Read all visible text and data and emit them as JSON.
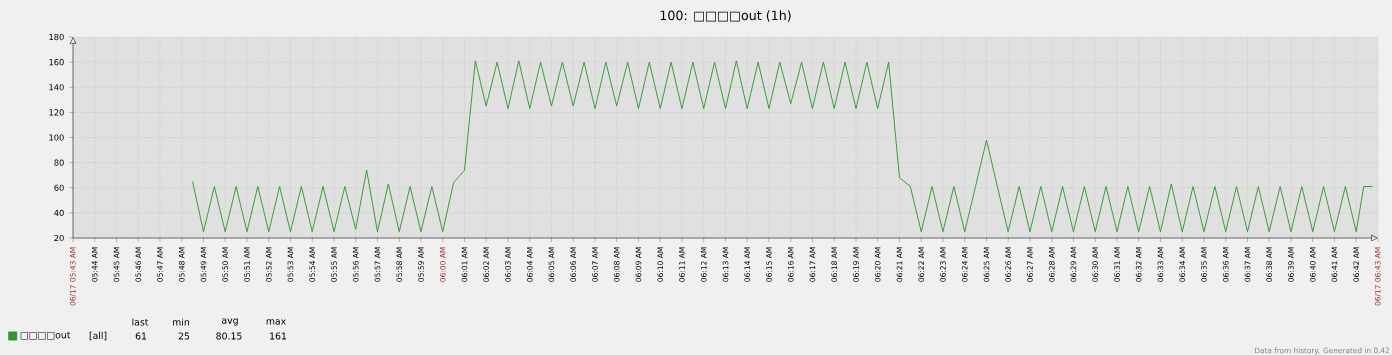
{
  "chart_data": {
    "type": "line",
    "title": "100: □□□□out (1h)",
    "xlim": [
      5.7167,
      6.7167
    ],
    "ylim": [
      20,
      180
    ],
    "yticks": [
      20,
      40,
      60,
      80,
      100,
      120,
      140,
      160,
      180
    ],
    "xticks": [
      {
        "value": 5.7167,
        "label": "06/17 05:43 AM"
      },
      {
        "value": 5.7333,
        "label": "05:44 AM"
      },
      {
        "value": 5.75,
        "label": "05:45 AM"
      },
      {
        "value": 5.7667,
        "label": "05:46 AM"
      },
      {
        "value": 5.7833,
        "label": "05:47 AM"
      },
      {
        "value": 5.8,
        "label": "05:48 AM"
      },
      {
        "value": 5.8167,
        "label": "05:49 AM"
      },
      {
        "value": 5.8333,
        "label": "05:50 AM"
      },
      {
        "value": 5.85,
        "label": "05:51 AM"
      },
      {
        "value": 5.8667,
        "label": "05:52 AM"
      },
      {
        "value": 5.8833,
        "label": "05:53 AM"
      },
      {
        "value": 5.9,
        "label": "05:54 AM"
      },
      {
        "value": 5.9167,
        "label": "05:55 AM"
      },
      {
        "value": 5.9333,
        "label": "05:56 AM"
      },
      {
        "value": 5.95,
        "label": "05:57 AM"
      },
      {
        "value": 5.9667,
        "label": "05:58 AM"
      },
      {
        "value": 5.9833,
        "label": "05:59 AM"
      },
      {
        "value": 6.0,
        "label": "06:00 AM"
      },
      {
        "value": 6.0167,
        "label": "06:01 AM"
      },
      {
        "value": 6.0333,
        "label": "06:02 AM"
      },
      {
        "value": 6.05,
        "label": "06:03 AM"
      },
      {
        "value": 6.0667,
        "label": "06:04 AM"
      },
      {
        "value": 6.0833,
        "label": "06:05 AM"
      },
      {
        "value": 6.1,
        "label": "06:06 AM"
      },
      {
        "value": 6.1167,
        "label": "06:07 AM"
      },
      {
        "value": 6.1333,
        "label": "06:08 AM"
      },
      {
        "value": 6.15,
        "label": "06:09 AM"
      },
      {
        "value": 6.1667,
        "label": "06:10 AM"
      },
      {
        "value": 6.1833,
        "label": "06:11 AM"
      },
      {
        "value": 6.2,
        "label": "06:12 AM"
      },
      {
        "value": 6.2167,
        "label": "06:13 AM"
      },
      {
        "value": 6.2333,
        "label": "06:14 AM"
      },
      {
        "value": 6.25,
        "label": "06:15 AM"
      },
      {
        "value": 6.2667,
        "label": "06:16 AM"
      },
      {
        "value": 6.2833,
        "label": "06:17 AM"
      },
      {
        "value": 6.3,
        "label": "06:18 AM"
      },
      {
        "value": 6.3167,
        "label": "06:19 AM"
      },
      {
        "value": 6.3333,
        "label": "06:20 AM"
      },
      {
        "value": 6.35,
        "label": "06:21 AM"
      },
      {
        "value": 6.3667,
        "label": "06:22 AM"
      },
      {
        "value": 6.3833,
        "label": "06:23 AM"
      },
      {
        "value": 6.4,
        "label": "06:24 AM"
      },
      {
        "value": 6.4167,
        "label": "06:25 AM"
      },
      {
        "value": 6.4333,
        "label": "06:26 AM"
      },
      {
        "value": 6.45,
        "label": "06:27 AM"
      },
      {
        "value": 6.4667,
        "label": "06:28 AM"
      },
      {
        "value": 6.4833,
        "label": "06:29 AM"
      },
      {
        "value": 6.5,
        "label": "06:30 AM"
      },
      {
        "value": 6.5167,
        "label": "06:31 AM"
      },
      {
        "value": 6.5333,
        "label": "06:32 AM"
      },
      {
        "value": 6.55,
        "label": "06:33 AM"
      },
      {
        "value": 6.5667,
        "label": "06:34 AM"
      },
      {
        "value": 6.5833,
        "label": "06:35 AM"
      },
      {
        "value": 6.6,
        "label": "06:36 AM"
      },
      {
        "value": 6.6167,
        "label": "06:37 AM"
      },
      {
        "value": 6.6333,
        "label": "06:38 AM"
      },
      {
        "value": 6.65,
        "label": "06:39 AM"
      },
      {
        "value": 6.6667,
        "label": "06:40 AM"
      },
      {
        "value": 6.6833,
        "label": "06:41 AM"
      },
      {
        "value": 6.7,
        "label": "06:42 AM"
      },
      {
        "value": 6.7167,
        "label": "06/17 06:43 AM"
      }
    ],
    "grid": true,
    "marker": "none",
    "legend": "bottom left",
    "series": [
      {
        "name": "□□□□out",
        "color": "#2a9a2a",
        "x": [
          5.8083,
          5.8167,
          5.825,
          5.8333,
          5.8417,
          5.85,
          5.8583,
          5.8667,
          5.875,
          5.8833,
          5.8917,
          5.9,
          5.9083,
          5.9167,
          5.925,
          5.9333,
          5.9417,
          5.95,
          5.9583,
          5.9667,
          5.975,
          5.9833,
          5.9917,
          6.0,
          6.0083,
          6.0167,
          6.025,
          6.0333,
          6.0417,
          6.05,
          6.0583,
          6.0667,
          6.075,
          6.0833,
          6.0917,
          6.1,
          6.1083,
          6.1167,
          6.125,
          6.1333,
          6.1417,
          6.15,
          6.1583,
          6.1667,
          6.175,
          6.1833,
          6.1917,
          6.2,
          6.2083,
          6.2167,
          6.225,
          6.2333,
          6.2417,
          6.25,
          6.2583,
          6.2667,
          6.275,
          6.2833,
          6.2917,
          6.3,
          6.3083,
          6.3167,
          6.325,
          6.3333,
          6.3417,
          6.35,
          6.3583,
          6.3667,
          6.375,
          6.3833,
          6.3917,
          6.4,
          6.4083,
          6.4167,
          6.425,
          6.4333,
          6.4417,
          6.45,
          6.4583,
          6.4667,
          6.475,
          6.4833,
          6.4917,
          6.5,
          6.5083,
          6.5167,
          6.525,
          6.5333,
          6.5417,
          6.55,
          6.5583,
          6.5667,
          6.575,
          6.5833,
          6.5917,
          6.6,
          6.6083,
          6.6167,
          6.625,
          6.6333,
          6.6417,
          6.65,
          6.6583,
          6.6667,
          6.675,
          6.6833,
          6.6917,
          6.7,
          6.7058,
          6.7125
        ],
        "values": [
          65,
          25,
          61,
          25,
          61,
          25,
          61,
          25,
          61,
          25,
          61,
          25,
          61,
          25,
          61,
          27,
          74,
          25,
          63,
          25,
          61,
          25,
          61,
          25,
          64,
          74,
          161,
          125,
          160,
          123,
          161,
          123,
          160,
          125,
          160,
          125,
          160,
          123,
          160,
          125,
          160,
          123,
          160,
          123,
          160,
          123,
          160,
          123,
          160,
          123,
          161,
          123,
          160,
          123,
          160,
          127,
          160,
          123,
          160,
          123,
          160,
          123,
          160,
          123,
          160,
          68,
          61,
          25,
          61,
          25,
          61,
          25,
          61,
          98,
          61,
          25,
          61,
          25,
          61,
          25,
          61,
          25,
          61,
          25,
          61,
          25,
          61,
          25,
          61,
          25,
          63,
          25,
          61,
          25,
          61,
          25,
          61,
          25,
          61,
          25,
          61,
          25,
          61,
          25,
          61,
          25,
          61,
          25,
          61,
          61
        ]
      }
    ],
    "annotations": [
      "[all]",
      "last",
      "min",
      "avg",
      "max",
      "61",
      "25",
      "80.15",
      "161",
      "Data from history. Generated in 0.42"
    ]
  }
}
